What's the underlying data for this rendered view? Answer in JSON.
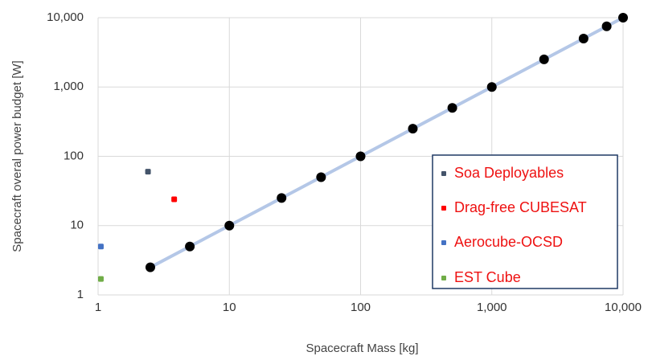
{
  "chart_data": {
    "type": "scatter",
    "title": "",
    "xlabel": "Spacecraft Mass [kg]",
    "ylabel": "Spacecraft overal power budget [W]",
    "xscale": "log",
    "yscale": "log",
    "xlim": [
      1,
      10000
    ],
    "ylim": [
      1,
      10000
    ],
    "x_ticks": [
      1,
      10,
      100,
      1000,
      10000
    ],
    "x_tick_labels": [
      "1",
      "10",
      "100",
      "1,000",
      "10,000"
    ],
    "y_ticks": [
      1,
      10,
      100,
      1000,
      10000
    ],
    "y_tick_labels": [
      "1",
      "10",
      "100",
      "1,000",
      "10,000"
    ],
    "grid": true,
    "legend_position": "bottom-right",
    "trend_line": {
      "x": [
        2.5,
        10000
      ],
      "y": [
        2.5,
        10000
      ],
      "color": "#b4c7e7"
    },
    "series": [
      {
        "color": "#000000",
        "points": [
          {
            "x": 2.5,
            "y": 2.5
          },
          {
            "x": 5,
            "y": 5
          },
          {
            "x": 10,
            "y": 10
          },
          {
            "x": 25,
            "y": 25
          },
          {
            "x": 50,
            "y": 50
          },
          {
            "x": 100,
            "y": 100
          },
          {
            "x": 250,
            "y": 250
          },
          {
            "x": 500,
            "y": 500
          },
          {
            "x": 1000,
            "y": 1000
          },
          {
            "x": 2500,
            "y": 2500
          },
          {
            "x": 5000,
            "y": 5000
          },
          {
            "x": 7500,
            "y": 7500
          },
          {
            "x": 10000,
            "y": 10000
          }
        ]
      },
      {
        "name": "Soa Deployables",
        "color": "#44546a",
        "points": [
          {
            "x": 2.4,
            "y": 60
          }
        ]
      },
      {
        "name": "Drag-free CUBESAT",
        "color": "#ff0000",
        "points": [
          {
            "x": 3.8,
            "y": 24
          }
        ]
      },
      {
        "name": "Aerocube-OCSD",
        "color": "#4472c4",
        "points": [
          {
            "x": 1.05,
            "y": 5
          }
        ]
      },
      {
        "name": "EST Cube",
        "color": "#70ad47",
        "points": [
          {
            "x": 1.05,
            "y": 1.7
          }
        ]
      }
    ],
    "legend": [
      {
        "label": "Soa Deployables",
        "color": "#44546a"
      },
      {
        "label": "Drag-free CUBESAT",
        "color": "#ff0000"
      },
      {
        "label": "Aerocube-OCSD",
        "color": "#4472c4"
      },
      {
        "label": "EST Cube",
        "color": "#70ad47"
      }
    ],
    "legend_border_color": "#1f3864"
  }
}
